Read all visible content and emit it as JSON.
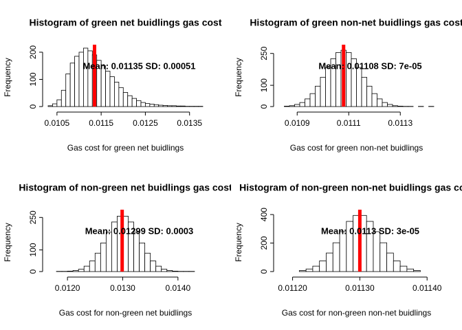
{
  "chart_data": [
    {
      "type": "histogram",
      "title": "Histogram of green net buidlings gas cost",
      "xlabel": "Gas cost for green net buidlings",
      "ylabel": "Frequency",
      "annotation": "Mean: 0.01135 SD: 0.00051",
      "mean_line": 0.01135,
      "color": "#ffffff",
      "line_color": "#ff0000",
      "bins": [
        0.0103,
        0.0104,
        0.0105,
        0.0106,
        0.0107,
        0.0108,
        0.0109,
        0.011,
        0.0111,
        0.0112,
        0.0113,
        0.0114,
        0.0115,
        0.0116,
        0.0117,
        0.0118,
        0.0119,
        0.012,
        0.0121,
        0.0122,
        0.0123,
        0.0124,
        0.0125,
        0.0126,
        0.0127,
        0.0128,
        0.0129,
        0.013,
        0.0131,
        0.0132,
        0.0133,
        0.0134,
        0.0135,
        0.0136,
        0.0137,
        0.0138
      ],
      "values": [
        3,
        10,
        25,
        60,
        120,
        160,
        185,
        200,
        215,
        205,
        190,
        170,
        150,
        130,
        110,
        90,
        70,
        52,
        40,
        30,
        22,
        15,
        11,
        9,
        7,
        5,
        4,
        3,
        3,
        2,
        2,
        1,
        1,
        1,
        1
      ],
      "xlim": [
        0.0103,
        0.0138
      ],
      "xticks": [
        0.0105,
        0.0115,
        0.0125,
        0.0135
      ],
      "ylim": [
        0,
        215
      ],
      "yticks": [
        0,
        100,
        200
      ]
    },
    {
      "type": "histogram",
      "title": "Histogram of green non-net buidlings gas cost",
      "xlabel": "Gas cost for green non-net buidlings",
      "ylabel": "Frequency",
      "annotation": "Mean: 0.01108 SD: 7e-05",
      "mean_line": 0.01108,
      "color": "#ffffff",
      "line_color": "#ff0000",
      "bins": [
        0.01085,
        0.01087,
        0.01089,
        0.01091,
        0.01093,
        0.01095,
        0.01097,
        0.01099,
        0.01101,
        0.01103,
        0.01105,
        0.01107,
        0.01109,
        0.01111,
        0.01113,
        0.01115,
        0.01117,
        0.01119,
        0.01121,
        0.01123,
        0.01125,
        0.01127,
        0.01129,
        0.01131,
        0.01133,
        0.01135,
        0.01137,
        0.01139,
        0.01141,
        0.01143
      ],
      "values": [
        2,
        4,
        10,
        19,
        36,
        61,
        96,
        138,
        184,
        225,
        254,
        265,
        254,
        225,
        184,
        138,
        96,
        61,
        36,
        19,
        10,
        4,
        2,
        1,
        1,
        0,
        1,
        0,
        1
      ],
      "xlim": [
        0.01083,
        0.01143
      ],
      "xticks": [
        0.0109,
        0.0111,
        0.0113
      ],
      "ylim": [
        0,
        275
      ],
      "yticks": [
        0,
        100,
        250
      ]
    },
    {
      "type": "histogram",
      "title": "Histogram of non-green net buidlings gas cost",
      "xlabel": "Gas cost for non-green net buidlings",
      "ylabel": "Frequency",
      "annotation": "Mean: 0.01299 SD: 0.0003",
      "mean_line": 0.01299,
      "color": "#ffffff",
      "line_color": "#ff0000",
      "bins": [
        0.0118,
        0.0119,
        0.012,
        0.0121,
        0.0122,
        0.0123,
        0.0124,
        0.0125,
        0.0126,
        0.0127,
        0.0128,
        0.0129,
        0.013,
        0.0131,
        0.0132,
        0.0133,
        0.0134,
        0.0135,
        0.0136,
        0.0137,
        0.0138,
        0.0139,
        0.014,
        0.0141,
        0.0142,
        0.0143
      ],
      "values": [
        1,
        1,
        2,
        5,
        11,
        25,
        49,
        85,
        132,
        182,
        229,
        256,
        256,
        229,
        182,
        132,
        85,
        49,
        25,
        11,
        5,
        2,
        1,
        1,
        1
      ],
      "xlim": [
        0.01165,
        0.01445
      ],
      "xticks": [
        {
          "value": 0.012,
          "label": "0.0120"
        },
        {
          "value": 0.013,
          "label": "0.0130"
        },
        {
          "value": 0.014,
          "label": "0.0140"
        }
      ],
      "ylim": [
        0,
        270
      ],
      "yticks": [
        0,
        100,
        250
      ]
    },
    {
      "type": "histogram",
      "title": "Histogram of non-green non-net buidlings gas cost",
      "xlabel": "Gas cost for non-green non-net buidlings",
      "ylabel": "Frequency",
      "annotation": "Mean: 0.0113 SD: 3e-05",
      "mean_line": 0.0113,
      "color": "#ffffff",
      "line_color": "#ff0000",
      "bins": [
        0.01121,
        0.01122,
        0.01123,
        0.01124,
        0.01125,
        0.01126,
        0.01127,
        0.01128,
        0.01129,
        0.0113,
        0.01131,
        0.01132,
        0.01133,
        0.01134,
        0.01135,
        0.01136,
        0.01137,
        0.01138,
        0.01139
      ],
      "values": [
        7,
        18,
        38,
        75,
        130,
        202,
        280,
        352,
        394,
        394,
        352,
        280,
        202,
        130,
        75,
        38,
        18,
        7
      ],
      "xlim": [
        0.01118,
        0.01141
      ],
      "xticks": [
        {
          "value": 0.0112,
          "label": "0.01120"
        },
        {
          "value": 0.0113,
          "label": "0.01130"
        },
        {
          "value": 0.0114,
          "label": "0.01140"
        }
      ],
      "ylim": [
        0,
        410
      ],
      "yticks": [
        0,
        200,
        400
      ]
    }
  ]
}
